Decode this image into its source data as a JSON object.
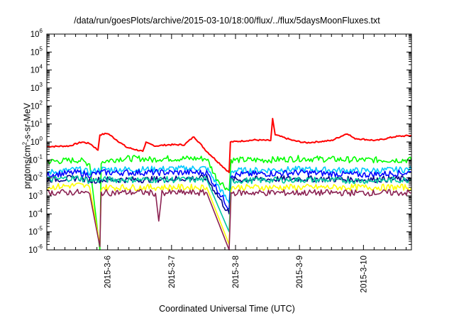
{
  "chart_data": {
    "type": "line",
    "title": "/data/run/goesPlots/archive/2015-03-10/18:00/flux/../flux/5daysMoonFluxes.txt",
    "xlabel": "Coordinated Universal Time (UTC)",
    "ylabel": {
      "pre": "protons/cm",
      "sup": "2",
      "post": "-s-sr-MeV"
    },
    "x_ticks": [
      "2015-3-6",
      "2015-3-7",
      "2015-3-8",
      "2015-3-9",
      "2015-3-10"
    ],
    "x_domain_days_from_2015_3_5": [
      0.05,
      5.75
    ],
    "y_scale": "log",
    "ylim": [
      1e-06,
      1000000.0
    ],
    "y_ticks": [
      {
        "base": "10",
        "exp": "-6"
      },
      {
        "base": "10",
        "exp": "-5"
      },
      {
        "base": "10",
        "exp": "-4"
      },
      {
        "base": "10",
        "exp": "-3"
      },
      {
        "base": "10",
        "exp": "-2"
      },
      {
        "base": "10",
        "exp": "-1"
      },
      {
        "base": "10",
        "exp": "0"
      },
      {
        "base": "10",
        "exp": "1"
      },
      {
        "base": "10",
        "exp": "2"
      },
      {
        "base": "10",
        "exp": "3"
      },
      {
        "base": "10",
        "exp": "4"
      },
      {
        "base": "10",
        "exp": "5"
      },
      {
        "base": "10",
        "exp": "6"
      }
    ],
    "legend": "none",
    "series": [
      {
        "color": "#ff0000",
        "points": [
          [
            0.05,
            0.55
          ],
          [
            0.4,
            0.6
          ],
          [
            0.6,
            1.0
          ],
          [
            0.73,
            0.8
          ],
          [
            0.85,
            0.35
          ],
          [
            0.88,
            2.5
          ],
          [
            1.0,
            3.0
          ],
          [
            1.3,
            0.5
          ],
          [
            1.55,
            0.3
          ],
          [
            1.6,
            0.9
          ],
          [
            1.75,
            0.6
          ],
          [
            1.95,
            0.7
          ],
          [
            2.2,
            0.7
          ],
          [
            2.35,
            2.0
          ],
          [
            2.55,
            0.3
          ],
          [
            2.9,
            0.02
          ],
          [
            2.92,
            1.0
          ],
          [
            3.3,
            1.3
          ],
          [
            3.55,
            1.2
          ],
          [
            3.58,
            20
          ],
          [
            3.62,
            2.5
          ],
          [
            3.9,
            1.2
          ],
          [
            4.1,
            0.9
          ],
          [
            4.5,
            1.2
          ],
          [
            4.75,
            3.0
          ],
          [
            4.85,
            1.6
          ],
          [
            5.2,
            1.2
          ],
          [
            5.5,
            2.0
          ],
          [
            5.75,
            2.3
          ]
        ]
      },
      {
        "color": "#00ff00",
        "points": [
          [
            0.05,
            0.08
          ],
          [
            0.55,
            0.1
          ],
          [
            0.72,
            0.06
          ],
          [
            0.88,
            1e-06
          ],
          [
            0.9,
            0.08
          ],
          [
            1.2,
            0.12
          ],
          [
            1.55,
            0.12
          ],
          [
            1.7,
            0.1
          ],
          [
            1.8,
            0.12
          ],
          [
            2.4,
            0.12
          ],
          [
            2.55,
            0.12
          ],
          [
            2.7,
            0.01
          ],
          [
            2.9,
            0.002
          ],
          [
            2.93,
            0.1
          ],
          [
            3.5,
            0.1
          ],
          [
            4.0,
            0.12
          ],
          [
            5.0,
            0.1
          ],
          [
            5.75,
            0.1
          ]
        ]
      },
      {
        "color": "#00c8ff",
        "points": [
          [
            0.05,
            0.02
          ],
          [
            0.55,
            0.03
          ],
          [
            0.72,
            0.02
          ],
          [
            0.9,
            0.03
          ],
          [
            1.55,
            0.03
          ],
          [
            2.55,
            0.035
          ],
          [
            2.9,
            0.0004
          ],
          [
            2.93,
            0.025
          ],
          [
            4.0,
            0.03
          ],
          [
            5.0,
            0.025
          ],
          [
            5.75,
            0.03
          ]
        ]
      },
      {
        "color": "#0000ff",
        "points": [
          [
            0.05,
            0.015
          ],
          [
            0.55,
            0.02
          ],
          [
            0.72,
            0.015
          ],
          [
            0.9,
            0.02
          ],
          [
            1.55,
            0.02
          ],
          [
            2.55,
            0.02
          ],
          [
            2.9,
            0.0002
          ],
          [
            2.93,
            0.015
          ],
          [
            4.0,
            0.02
          ],
          [
            5.0,
            0.015
          ],
          [
            5.75,
            0.02
          ]
        ]
      },
      {
        "color": "#00008b",
        "points": [
          [
            0.05,
            0.008
          ],
          [
            0.55,
            0.01
          ],
          [
            0.72,
            0.007
          ],
          [
            0.9,
            0.008
          ],
          [
            1.55,
            0.008
          ],
          [
            2.55,
            0.01
          ],
          [
            2.9,
            0.0001
          ],
          [
            2.93,
            0.008
          ],
          [
            4.0,
            0.009
          ],
          [
            5.0,
            0.008
          ],
          [
            5.75,
            0.009
          ]
        ]
      },
      {
        "color": "#00c8a0",
        "points": [
          [
            0.05,
            0.008
          ],
          [
            0.55,
            0.01
          ],
          [
            0.72,
            0.007
          ],
          [
            0.9,
            0.008
          ],
          [
            1.55,
            0.008
          ],
          [
            2.55,
            0.008
          ],
          [
            2.9,
            1e-05
          ],
          [
            2.93,
            0.007
          ],
          [
            4.0,
            0.008
          ],
          [
            5.0,
            0.007
          ],
          [
            5.75,
            0.008
          ]
        ]
      },
      {
        "color": "#ffff00",
        "points": [
          [
            0.05,
            0.003
          ],
          [
            0.55,
            0.004
          ],
          [
            0.72,
            0.003
          ],
          [
            0.88,
            2e-06
          ],
          [
            0.9,
            0.003
          ],
          [
            1.55,
            0.003
          ],
          [
            2.55,
            0.003
          ],
          [
            2.9,
            2e-06
          ],
          [
            2.93,
            0.003
          ],
          [
            4.0,
            0.003
          ],
          [
            5.75,
            0.003
          ]
        ]
      },
      {
        "color": "#8b2252",
        "points": [
          [
            0.05,
            0.0015
          ],
          [
            0.55,
            0.0016
          ],
          [
            0.72,
            0.0013
          ],
          [
            0.88,
            1.5e-06
          ],
          [
            0.9,
            0.0015
          ],
          [
            1.55,
            0.0016
          ],
          [
            1.75,
            0.0014
          ],
          [
            1.8,
            4e-05
          ],
          [
            1.85,
            0.0015
          ],
          [
            2.55,
            0.0015
          ],
          [
            2.9,
            1e-06
          ],
          [
            2.93,
            0.0015
          ],
          [
            4.0,
            0.0015
          ],
          [
            5.75,
            0.0015
          ]
        ]
      }
    ]
  }
}
